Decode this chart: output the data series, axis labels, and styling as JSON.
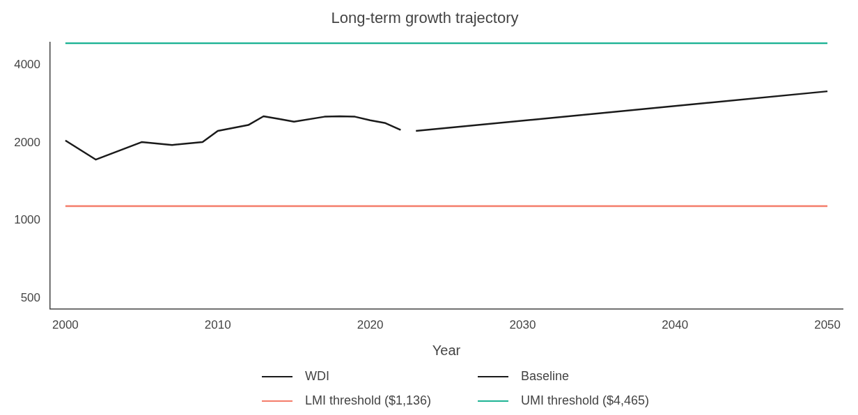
{
  "chart_data": {
    "type": "line",
    "title": "Long-term growth trajectory",
    "xlabel": "Year",
    "log": "y",
    "grid": false,
    "legend": "bottom",
    "line_style": "solid",
    "marker": "none",
    "xlim": [
      1999,
      2051
    ],
    "xticks": [
      2000,
      2010,
      2020,
      2030,
      2040,
      2050
    ],
    "ylim": [
      455,
      4900
    ],
    "yticks": [
      500,
      1000,
      2000,
      4000
    ],
    "series": [
      {
        "name": "WDI",
        "color": "#1a1a1a",
        "x": [
          2000,
          2002,
          2005,
          2007,
          2009,
          2010,
          2012,
          2013,
          2014,
          2015,
          2017,
          2018,
          2019,
          2020,
          2021,
          2022
        ],
        "values": [
          2040,
          1720,
          2010,
          1960,
          2010,
          2220,
          2340,
          2530,
          2470,
          2410,
          2520,
          2530,
          2520,
          2440,
          2380,
          2240
        ]
      },
      {
        "name": "Baseline",
        "color": "#1a1a1a",
        "x": [
          2023,
          2050
        ],
        "values": [
          2220,
          3160
        ]
      },
      {
        "name": "LMI threshold ($1,136)",
        "color": "#f47c6a",
        "x": [
          2000,
          2050
        ],
        "values": [
          1136,
          1136
        ]
      },
      {
        "name": "UMI threshold ($4,465)",
        "color": "#1db394",
        "x": [
          2000,
          2050
        ],
        "values": [
          4850,
          4850
        ]
      }
    ]
  }
}
